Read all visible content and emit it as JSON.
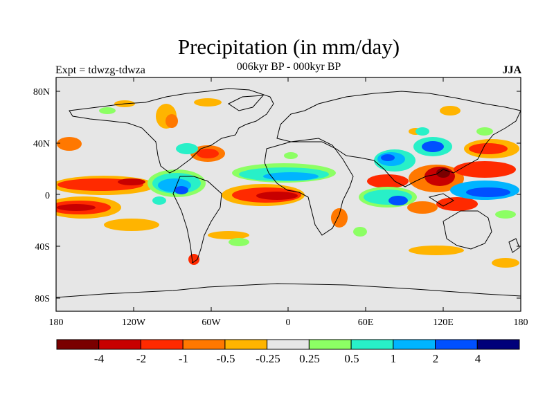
{
  "title": "Precipitation (in mm/day)",
  "subtitle": "006kyr BP - 000kyr BP",
  "left_label": "Expt = tdwzg-tdwza",
  "right_label": "JJA",
  "y_ticks": [
    "80N",
    "40N",
    "0",
    "40S",
    "80S"
  ],
  "x_ticks": [
    "180",
    "120W",
    "60W",
    "0",
    "60E",
    "120E",
    "180"
  ],
  "colorbar": {
    "colors": [
      "#7a0000",
      "#c80000",
      "#ff2a00",
      "#ff7800",
      "#ffb400",
      "#e6e6e6",
      "#8cff64",
      "#28f0c8",
      "#00b4ff",
      "#0050ff",
      "#00007a"
    ],
    "labels": [
      "-4",
      "-2",
      "-1",
      "-0.5",
      "-0.25",
      "0.25",
      "0.5",
      "1",
      "2",
      "4"
    ]
  },
  "colors": {
    "background": "#e6e6e6",
    "coastline": "#000000"
  }
}
